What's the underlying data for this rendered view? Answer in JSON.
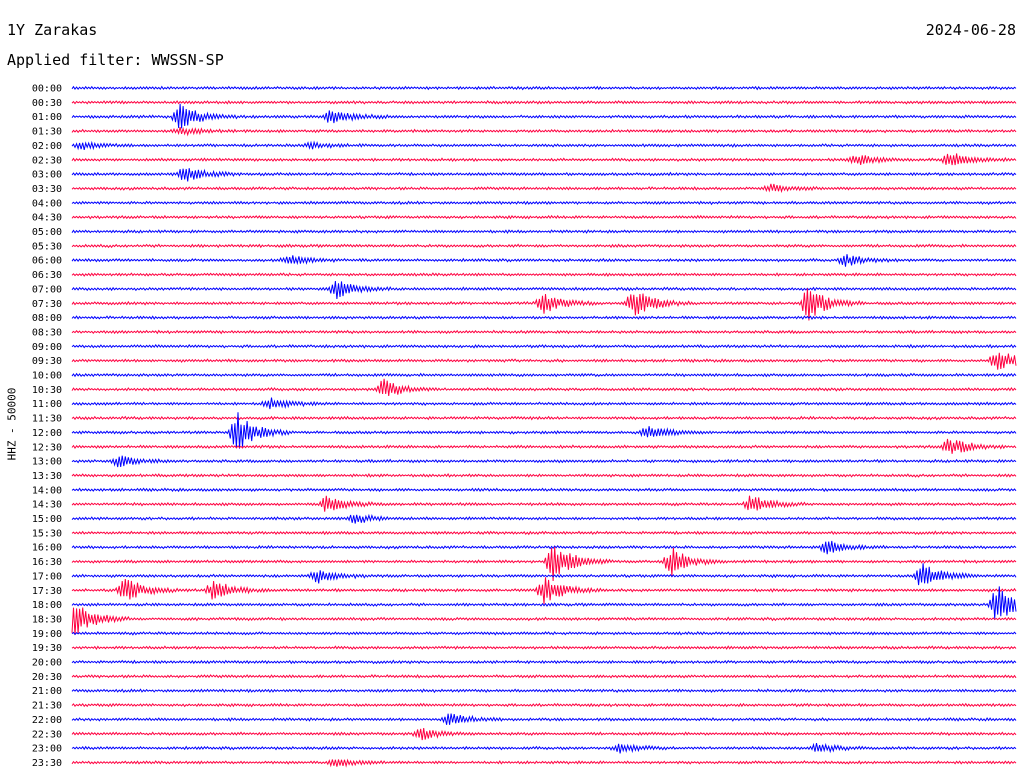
{
  "header": {
    "station": "1Y Zarakas",
    "date": "2024-06-28",
    "filter": "Applied filter: WWSSN-SP"
  },
  "chart_data": {
    "type": "line",
    "subtype": "helicorder",
    "ylabel": "HHZ - 50000",
    "row_labels": [
      "00:00",
      "00:30",
      "01:00",
      "01:30",
      "02:00",
      "02:30",
      "03:00",
      "03:30",
      "04:00",
      "04:30",
      "05:00",
      "05:30",
      "06:00",
      "06:30",
      "07:00",
      "07:30",
      "08:00",
      "08:30",
      "09:00",
      "09:30",
      "10:00",
      "10:30",
      "11:00",
      "11:30",
      "12:00",
      "12:30",
      "13:00",
      "13:30",
      "14:00",
      "14:30",
      "15:00",
      "15:30",
      "16:00",
      "16:30",
      "17:00",
      "17:30",
      "18:00",
      "18:30",
      "19:00",
      "19:30",
      "20:00",
      "20:30",
      "21:00",
      "21:30",
      "22:00",
      "22:30",
      "23:00",
      "23:30"
    ],
    "colors": [
      "#0000ff",
      "#ff0040"
    ],
    "grid": false,
    "events": [
      {
        "row": 2,
        "x": 0.115,
        "amp": 14
      },
      {
        "row": 2,
        "x": 0.275,
        "amp": 9
      },
      {
        "row": 3,
        "x": 0.115,
        "amp": 4
      },
      {
        "row": 4,
        "x": 0.01,
        "amp": 4
      },
      {
        "row": 4,
        "x": 0.255,
        "amp": 3
      },
      {
        "row": 5,
        "x": 0.83,
        "amp": 6
      },
      {
        "row": 5,
        "x": 0.93,
        "amp": 8
      },
      {
        "row": 6,
        "x": 0.12,
        "amp": 8
      },
      {
        "row": 7,
        "x": 0.74,
        "amp": 4
      },
      {
        "row": 12,
        "x": 0.23,
        "amp": 5
      },
      {
        "row": 12,
        "x": 0.82,
        "amp": 6
      },
      {
        "row": 14,
        "x": 0.28,
        "amp": 10
      },
      {
        "row": 15,
        "x": 0.5,
        "amp": 10
      },
      {
        "row": 15,
        "x": 0.595,
        "amp": 16
      },
      {
        "row": 15,
        "x": 0.78,
        "amp": 18
      },
      {
        "row": 19,
        "x": 0.98,
        "amp": 12
      },
      {
        "row": 21,
        "x": 0.33,
        "amp": 10
      },
      {
        "row": 22,
        "x": 0.21,
        "amp": 6
      },
      {
        "row": 24,
        "x": 0.175,
        "amp": 20
      },
      {
        "row": 24,
        "x": 0.61,
        "amp": 7
      },
      {
        "row": 25,
        "x": 0.93,
        "amp": 10
      },
      {
        "row": 26,
        "x": 0.05,
        "amp": 6
      },
      {
        "row": 29,
        "x": 0.27,
        "amp": 8
      },
      {
        "row": 29,
        "x": 0.72,
        "amp": 10
      },
      {
        "row": 30,
        "x": 0.3,
        "amp": 5
      },
      {
        "row": 32,
        "x": 0.8,
        "amp": 7
      },
      {
        "row": 33,
        "x": 0.51,
        "amp": 20
      },
      {
        "row": 33,
        "x": 0.635,
        "amp": 14
      },
      {
        "row": 34,
        "x": 0.26,
        "amp": 7
      },
      {
        "row": 34,
        "x": 0.9,
        "amp": 14
      },
      {
        "row": 35,
        "x": 0.055,
        "amp": 14
      },
      {
        "row": 35,
        "x": 0.15,
        "amp": 10
      },
      {
        "row": 35,
        "x": 0.5,
        "amp": 14
      },
      {
        "row": 36,
        "x": 0.98,
        "amp": 22
      },
      {
        "row": 37,
        "x": 0.0,
        "amp": 22
      },
      {
        "row": 44,
        "x": 0.4,
        "amp": 6
      },
      {
        "row": 45,
        "x": 0.37,
        "amp": 6
      },
      {
        "row": 46,
        "x": 0.58,
        "amp": 5
      },
      {
        "row": 46,
        "x": 0.79,
        "amp": 5
      },
      {
        "row": 47,
        "x": 0.28,
        "amp": 4
      }
    ]
  }
}
